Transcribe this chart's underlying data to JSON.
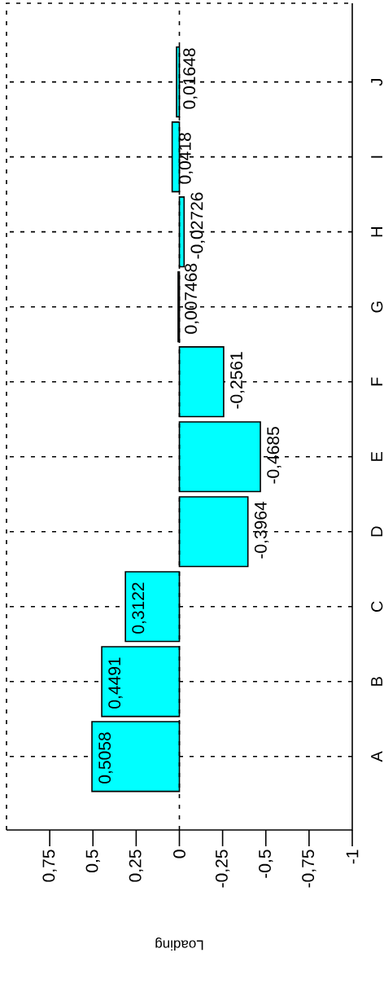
{
  "chart_data": {
    "type": "bar",
    "orientation": "horizontal",
    "xlabel": "Loading",
    "categories": [
      "J",
      "I",
      "H",
      "G",
      "F",
      "E",
      "D",
      "C",
      "B",
      "A"
    ],
    "values": [
      0.01648,
      0.0418,
      -0.02726,
      0.007468,
      -0.2561,
      -0.4685,
      -0.3964,
      0.3122,
      0.4491,
      0.5058
    ],
    "value_labels": [
      "0,01648",
      "0,0418",
      "-0,02726",
      "0,007468",
      "-0,2561",
      "-0,4685",
      "-0,3964",
      "0,3122",
      "0,4491",
      "0,5058"
    ],
    "color": "#00ffff",
    "xlim": [
      1,
      -1
    ],
    "xticks": [
      {
        "value": 0.75,
        "label": "0,75"
      },
      {
        "value": 0.5,
        "label": "0,5"
      },
      {
        "value": 0.25,
        "label": "0,25"
      },
      0,
      {
        "value": -0.25,
        "label": "-0,25"
      },
      {
        "value": -0.5,
        "label": "-0,5"
      },
      {
        "value": -0.75,
        "label": "-0,75"
      },
      -1
    ],
    "grid": "y",
    "ref_lines": [
      {
        "axis": "x",
        "value": 0,
        "line_style": "dotted"
      }
    ]
  }
}
